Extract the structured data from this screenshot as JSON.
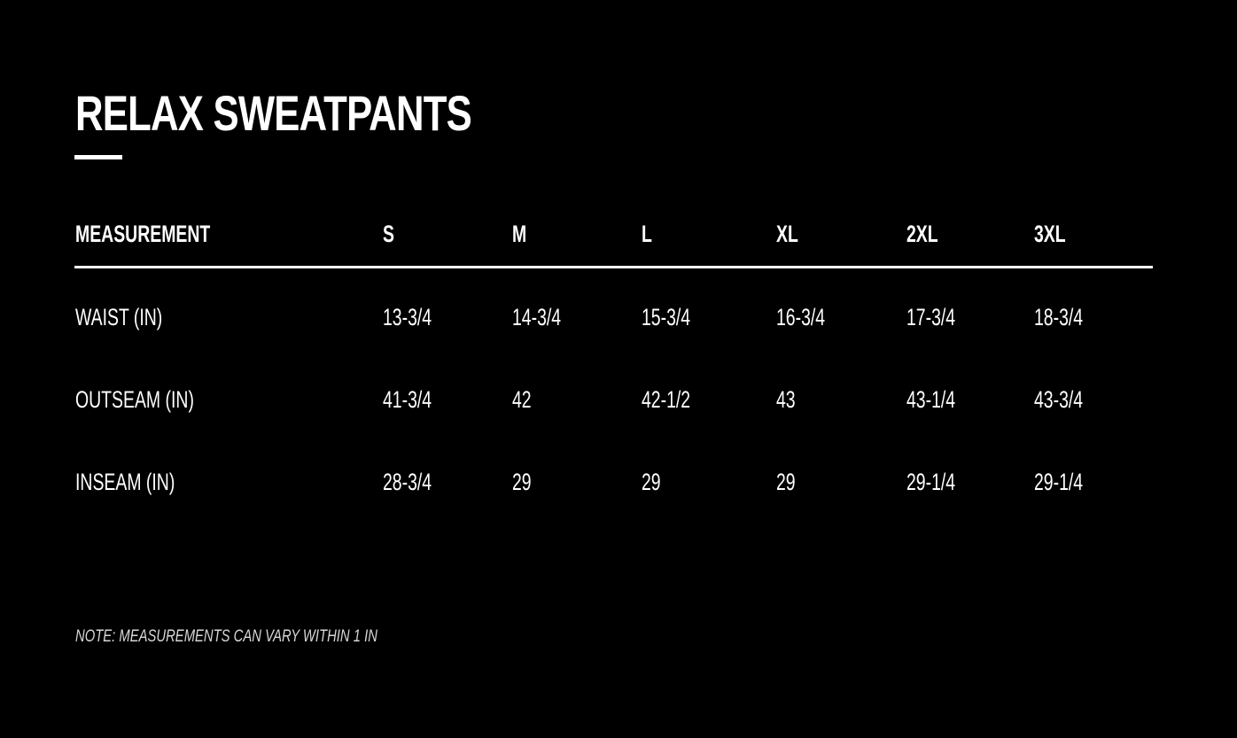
{
  "title": "RELAX SWEATPANTS",
  "table": {
    "headers": [
      "MEASUREMENT",
      "S",
      "M",
      "L",
      "XL",
      "2XL",
      "3XL"
    ],
    "rows": [
      [
        "WAIST (IN)",
        "13-3/4",
        "14-3/4",
        "15-3/4",
        "16-3/4",
        "17-3/4",
        "18-3/4"
      ],
      [
        "OUTSEAM (IN)",
        "41-3/4",
        "42",
        "42-1/2",
        "43",
        "43-1/4",
        "43-3/4"
      ],
      [
        "INSEAM (IN)",
        "28-3/4",
        "29",
        "29",
        "29",
        "29-1/4",
        "29-1/4"
      ]
    ]
  },
  "note": "NOTE: MEASUREMENTS CAN VARY WITHIN 1 IN"
}
